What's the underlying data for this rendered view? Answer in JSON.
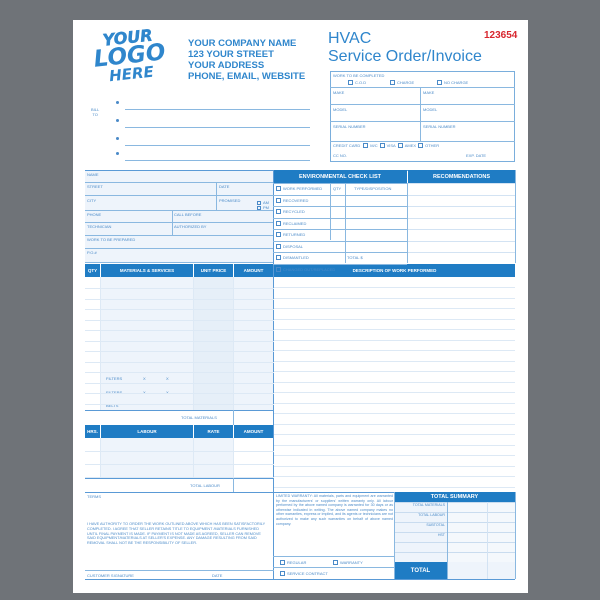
{
  "logo": {
    "lines": [
      "YOUR",
      "LOGO",
      "HERE"
    ]
  },
  "company": {
    "name": "YOUR COMPANY NAME",
    "street": "123 YOUR STREET",
    "address": "YOUR ADDRESS",
    "contact": "PHONE, EMAIL, WEBSITE"
  },
  "title": {
    "line1": "HVAC",
    "line2": "Service Order/Invoice",
    "number": "123654"
  },
  "bill_to": {
    "label1": "BILL",
    "label2": "TO"
  },
  "work_box": {
    "header": "WORK TO BE COMPLETED",
    "options": [
      "C.O.D",
      "CHARGE",
      "NO CHARGE"
    ],
    "make": "MAKE",
    "model": "MODEL",
    "serial": "SERIAL NUMBER",
    "credit_card": "CREDIT CARD",
    "cards": [
      "M/C",
      "VISA",
      "AMEX",
      "OTHER"
    ],
    "cc_no": "CC NO.",
    "exp": "EXP. DATE"
  },
  "customer": {
    "name": "NAME",
    "street": "STREET",
    "date": "DATE",
    "city": "CITY",
    "promised": "PROMISED",
    "am": "AM",
    "pm": "PM",
    "phone": "PHONE",
    "call_before": "CALL BEFORE",
    "technician": "TECHNICIAN",
    "authorized": "AUTHORIZED BY",
    "work": "WORK TO BE PREPARED",
    "po": "P.O.#"
  },
  "env": {
    "header": "ENVIRONMENTAL CHECK LIST",
    "qty": "QTY",
    "type": "TYPE/DISPOSITION",
    "items": [
      "WORK PERFORMED",
      "RECOVERED",
      "RECYCLED",
      "RECLAIMED",
      "RETURNED",
      "DISPOSAL",
      "DISMANTLED",
      "CHANGED OUT/REPLACED"
    ],
    "total": "TOTAL $"
  },
  "recommendations": "RECOMMENDATIONS",
  "materials": {
    "qty": "QTY",
    "materials": "MATERIALS & SERVICES",
    "unit": "UNIT PRICE",
    "amount": "AMOUNT",
    "filters": "FILTERS",
    "x": "X",
    "belts": "BELTS",
    "total": "TOTAL MATERIALS"
  },
  "description": "DESCRIPTION OF WORK PERFORMED",
  "labour": {
    "hrs": "HRS.",
    "labour": "LABOUR",
    "rate": "RATE",
    "amount": "AMOUNT",
    "total": "TOTAL LABOUR"
  },
  "terms": {
    "label": "TERMS",
    "authority": "I HAVE AUTHORITY TO ORDER THE WORK OUTLINED ABOVE WHICH HAS BEEN SATISFACTORILY COMPLETED. I AGREE THAT SELLER RETAINS TITLE TO EQUIPMENT /MATERIALS FURNISHED UNTIL FINAL PAYMENT IS MADE. IF PAYMENT IS NOT MADE AS AGREED, SELLER CAN REMOVE SAID EQUIPMENT/MATERIALS AT SELLER'S EXPENSE. ANY DAMAGE RESULTING FROM SAID REMOVAL SHALL NOT BE THE RESPONSIBILITY OF SELLER.",
    "signature": "CUSTOMER SIGNATURE",
    "date": "DATE"
  },
  "warranty": {
    "text": "LIMITED WARRANTY: All materials, parts and equipment are warranted by the manufacturers' or suppliers' written warranty only. All labour performed by the above named company is warranted for 30 days or as otherwise indicated in writing. The above named company makes no other warranties, express or implied, and its agents or technicians are not authorized to make any such warranties on behalf of above named company.",
    "regular": "REGULAR",
    "warranty": "WARRANTY",
    "service": "SERVICE CONTRACT"
  },
  "summary": {
    "header": "TOTAL SUMMARY",
    "rows": [
      "TOTAL MATERIALS",
      "TOTAL LABOUR",
      "SUBTOTAL",
      "HST",
      "",
      ""
    ],
    "total": "TOTAL"
  },
  "colors": {
    "accent": "#1f7cc4",
    "number": "#d8262e",
    "background": "#6f7378"
  }
}
